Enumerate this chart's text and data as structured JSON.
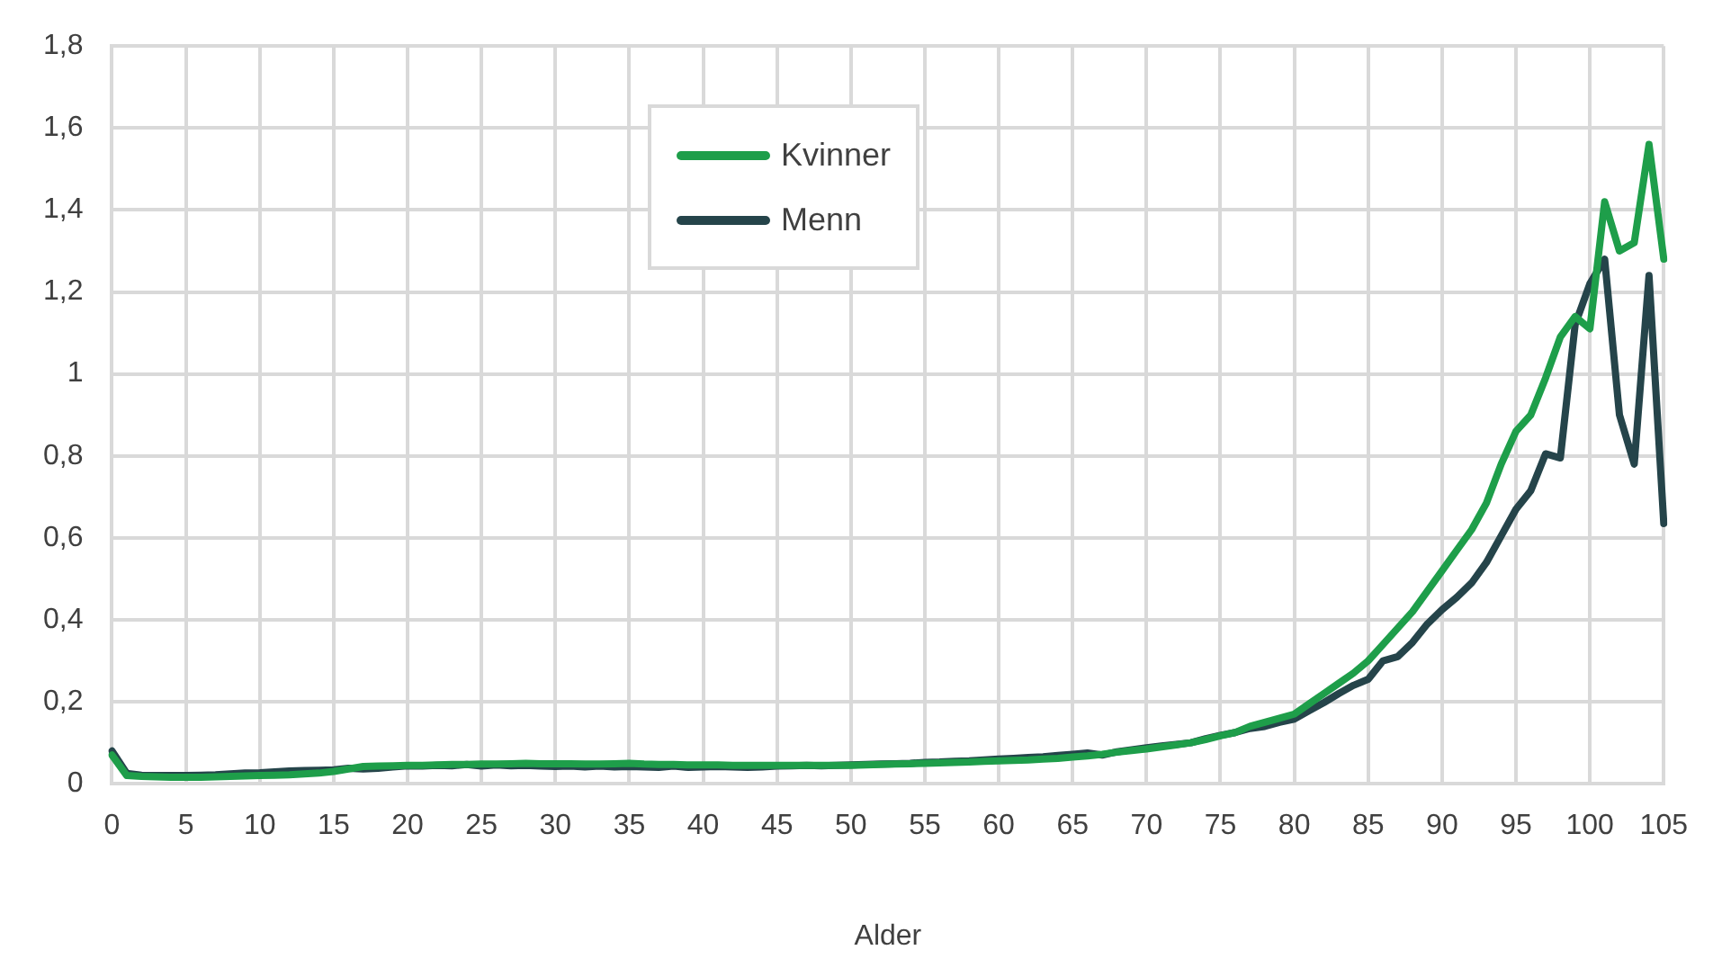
{
  "chart_data": {
    "type": "line",
    "xlabel": "Alder",
    "categories": [
      "0",
      null,
      null,
      null,
      null,
      "5",
      null,
      null,
      null,
      null,
      "10",
      null,
      null,
      null,
      null,
      "15",
      null,
      null,
      null,
      null,
      "20",
      null,
      null,
      null,
      null,
      "25",
      null,
      null,
      null,
      null,
      "30",
      null,
      null,
      null,
      null,
      "35",
      null,
      null,
      null,
      null,
      "40",
      null,
      null,
      null,
      null,
      "45",
      null,
      null,
      null,
      null,
      "50",
      null,
      null,
      null,
      null,
      "55",
      null,
      null,
      null,
      null,
      "60",
      null,
      null,
      null,
      null,
      "65",
      null,
      null,
      null,
      null,
      "70",
      null,
      null,
      null,
      null,
      "75",
      null,
      null,
      null,
      null,
      "80",
      null,
      null,
      null,
      null,
      "85",
      null,
      null,
      null,
      null,
      "90",
      null,
      null,
      null,
      null,
      "95",
      null,
      null,
      null,
      null,
      "100",
      null,
      null,
      null,
      null,
      "105"
    ],
    "series": [
      {
        "name": "Kvinner",
        "color": "#1e9e4a",
        "values": [
          0.07,
          0.02,
          0.018,
          0.017,
          0.016,
          0.016,
          0.016,
          0.017,
          0.018,
          0.019,
          0.02,
          0.021,
          0.022,
          0.024,
          0.026,
          0.03,
          0.036,
          0.042,
          0.043,
          0.044,
          0.045,
          0.045,
          0.046,
          0.047,
          0.047,
          0.048,
          0.048,
          0.049,
          0.05,
          0.049,
          0.049,
          0.049,
          0.048,
          0.048,
          0.049,
          0.05,
          0.048,
          0.047,
          0.047,
          0.046,
          0.046,
          0.046,
          0.045,
          0.045,
          0.045,
          0.045,
          0.045,
          0.045,
          0.045,
          0.045,
          0.045,
          0.046,
          0.047,
          0.048,
          0.049,
          0.05,
          0.051,
          0.052,
          0.053,
          0.055,
          0.056,
          0.057,
          0.058,
          0.06,
          0.062,
          0.065,
          0.068,
          0.072,
          0.077,
          0.081,
          0.085,
          0.09,
          0.095,
          0.1,
          0.108,
          0.117,
          0.125,
          0.14,
          0.15,
          0.16,
          0.17,
          0.195,
          0.22,
          0.245,
          0.27,
          0.3,
          0.34,
          0.38,
          0.42,
          0.47,
          0.52,
          0.57,
          0.62,
          0.685,
          0.78,
          0.86,
          0.9,
          0.99,
          1.09,
          1.14,
          1.11,
          1.42,
          1.3,
          1.32,
          1.56,
          1.28
        ]
      },
      {
        "name": "Menn",
        "color": "#25444a",
        "values": [
          0.08,
          0.025,
          0.021,
          0.02,
          0.02,
          0.02,
          0.021,
          0.022,
          0.024,
          0.026,
          0.027,
          0.029,
          0.031,
          0.032,
          0.033,
          0.034,
          0.038,
          0.036,
          0.038,
          0.041,
          0.044,
          0.043,
          0.045,
          0.044,
          0.047,
          0.043,
          0.046,
          0.044,
          0.045,
          0.043,
          0.042,
          0.043,
          0.041,
          0.043,
          0.041,
          0.042,
          0.041,
          0.04,
          0.043,
          0.04,
          0.041,
          0.042,
          0.041,
          0.04,
          0.041,
          0.043,
          0.044,
          0.045,
          0.044,
          0.045,
          0.046,
          0.047,
          0.048,
          0.049,
          0.05,
          0.052,
          0.053,
          0.055,
          0.056,
          0.058,
          0.06,
          0.062,
          0.064,
          0.066,
          0.069,
          0.072,
          0.075,
          0.07,
          0.078,
          0.083,
          0.088,
          0.092,
          0.096,
          0.1,
          0.11,
          0.118,
          0.125,
          0.135,
          0.14,
          0.15,
          0.158,
          0.178,
          0.198,
          0.22,
          0.24,
          0.255,
          0.3,
          0.31,
          0.345,
          0.39,
          0.425,
          0.455,
          0.49,
          0.54,
          0.605,
          0.67,
          0.715,
          0.805,
          0.795,
          1.12,
          1.22,
          1.28,
          0.9,
          0.78,
          1.24,
          0.635
        ]
      }
    ],
    "ylim": [
      0,
      1.8
    ],
    "yticks": [
      0,
      {
        "value": 0.2,
        "label": "0,2"
      },
      {
        "value": 0.4,
        "label": "0,4"
      },
      {
        "value": 0.6,
        "label": "0,6"
      },
      {
        "value": 0.8,
        "label": "0,8"
      },
      1,
      {
        "value": 1.2,
        "label": "1,2"
      },
      {
        "value": 1.4,
        "label": "1,4"
      },
      {
        "value": 1.6,
        "label": "1,6"
      },
      {
        "value": 1.8,
        "label": "1,8"
      }
    ],
    "grid": true,
    "legend": "top",
    "marker": "none",
    "line_style": "solid"
  }
}
